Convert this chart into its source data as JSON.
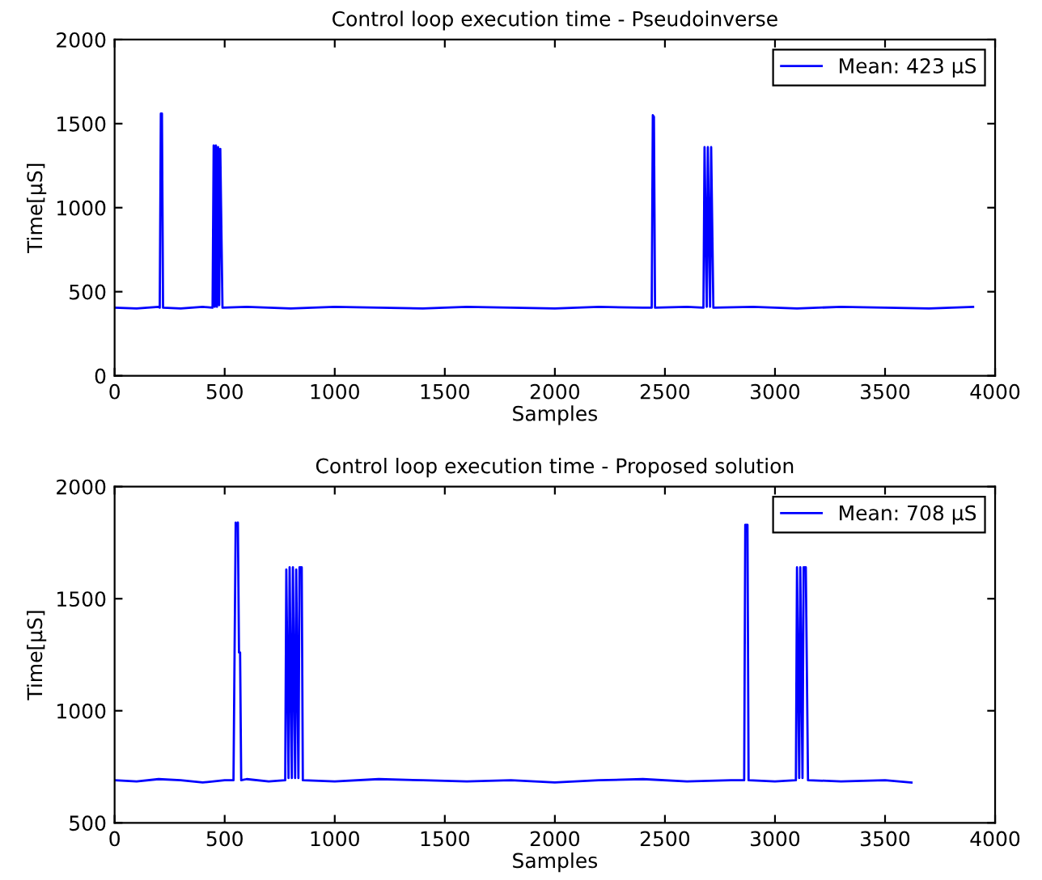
{
  "chart_data": [
    {
      "type": "line",
      "title": "Control loop execution time - Pseudoinverse",
      "xlabel": "Samples",
      "ylabel": "Time[µS]",
      "xlim": [
        0,
        4000
      ],
      "xticks": [
        0,
        500,
        1000,
        1500,
        2000,
        2500,
        3000,
        3500,
        4000
      ],
      "ylim": [
        0,
        2000
      ],
      "yticks": [
        0,
        500,
        1000,
        1500,
        2000
      ],
      "grid": false,
      "legend": "top right",
      "marker": "none",
      "line_style": "solid",
      "series": [
        {
          "name": "Mean: 423 µS",
          "color": "#0000ff",
          "x": [
            0,
            100,
            200,
            205,
            210,
            215,
            220,
            300,
            400,
            445,
            450,
            455,
            460,
            465,
            470,
            475,
            480,
            485,
            490,
            600,
            800,
            1000,
            1200,
            1400,
            1600,
            1800,
            2000,
            2200,
            2400,
            2440,
            2445,
            2450,
            2455,
            2600,
            2675,
            2680,
            2690,
            2695,
            2705,
            2710,
            2720,
            2900,
            3100,
            3300,
            3500,
            3700,
            3900
          ],
          "values": [
            405,
            400,
            410,
            405,
            1560,
            1560,
            405,
            400,
            410,
            405,
            1370,
            410,
            1370,
            410,
            1360,
            420,
            1350,
            870,
            405,
            410,
            400,
            410,
            405,
            400,
            410,
            405,
            400,
            410,
            405,
            405,
            1550,
            1540,
            405,
            410,
            405,
            1360,
            410,
            1360,
            410,
            1360,
            405,
            410,
            400,
            410,
            405,
            400,
            410
          ]
        }
      ]
    },
    {
      "type": "line",
      "title": "Control loop execution time - Proposed solution",
      "xlabel": "Samples",
      "ylabel": "Time[µS]",
      "xlim": [
        0,
        4000
      ],
      "xticks": [
        0,
        500,
        1000,
        1500,
        2000,
        2500,
        3000,
        3500,
        4000
      ],
      "ylim": [
        500,
        2000
      ],
      "yticks": [
        500,
        1000,
        1500,
        2000
      ],
      "grid": false,
      "legend": "top right",
      "marker": "none",
      "line_style": "solid",
      "series": [
        {
          "name": "Mean: 708 µS",
          "color": "#0000ff",
          "x": [
            0,
            100,
            200,
            300,
            400,
            500,
            540,
            545,
            550,
            555,
            560,
            565,
            570,
            575,
            600,
            700,
            775,
            780,
            790,
            795,
            805,
            810,
            820,
            825,
            835,
            840,
            850,
            855,
            1000,
            1200,
            1400,
            1600,
            1800,
            2000,
            2200,
            2400,
            2600,
            2800,
            2860,
            2865,
            2875,
            2880,
            3000,
            3095,
            3100,
            3110,
            3115,
            3125,
            3130,
            3140,
            3150,
            3300,
            3500,
            3620
          ],
          "values": [
            690,
            685,
            695,
            690,
            680,
            690,
            690,
            1260,
            1840,
            1830,
            1840,
            1260,
            1260,
            690,
            695,
            685,
            690,
            1630,
            700,
            1640,
            700,
            1640,
            700,
            1630,
            700,
            1640,
            1640,
            690,
            685,
            695,
            690,
            685,
            690,
            680,
            690,
            695,
            685,
            690,
            690,
            1830,
            1830,
            690,
            685,
            690,
            1640,
            700,
            1640,
            700,
            1640,
            1640,
            690,
            685,
            690,
            680
          ]
        }
      ]
    }
  ]
}
